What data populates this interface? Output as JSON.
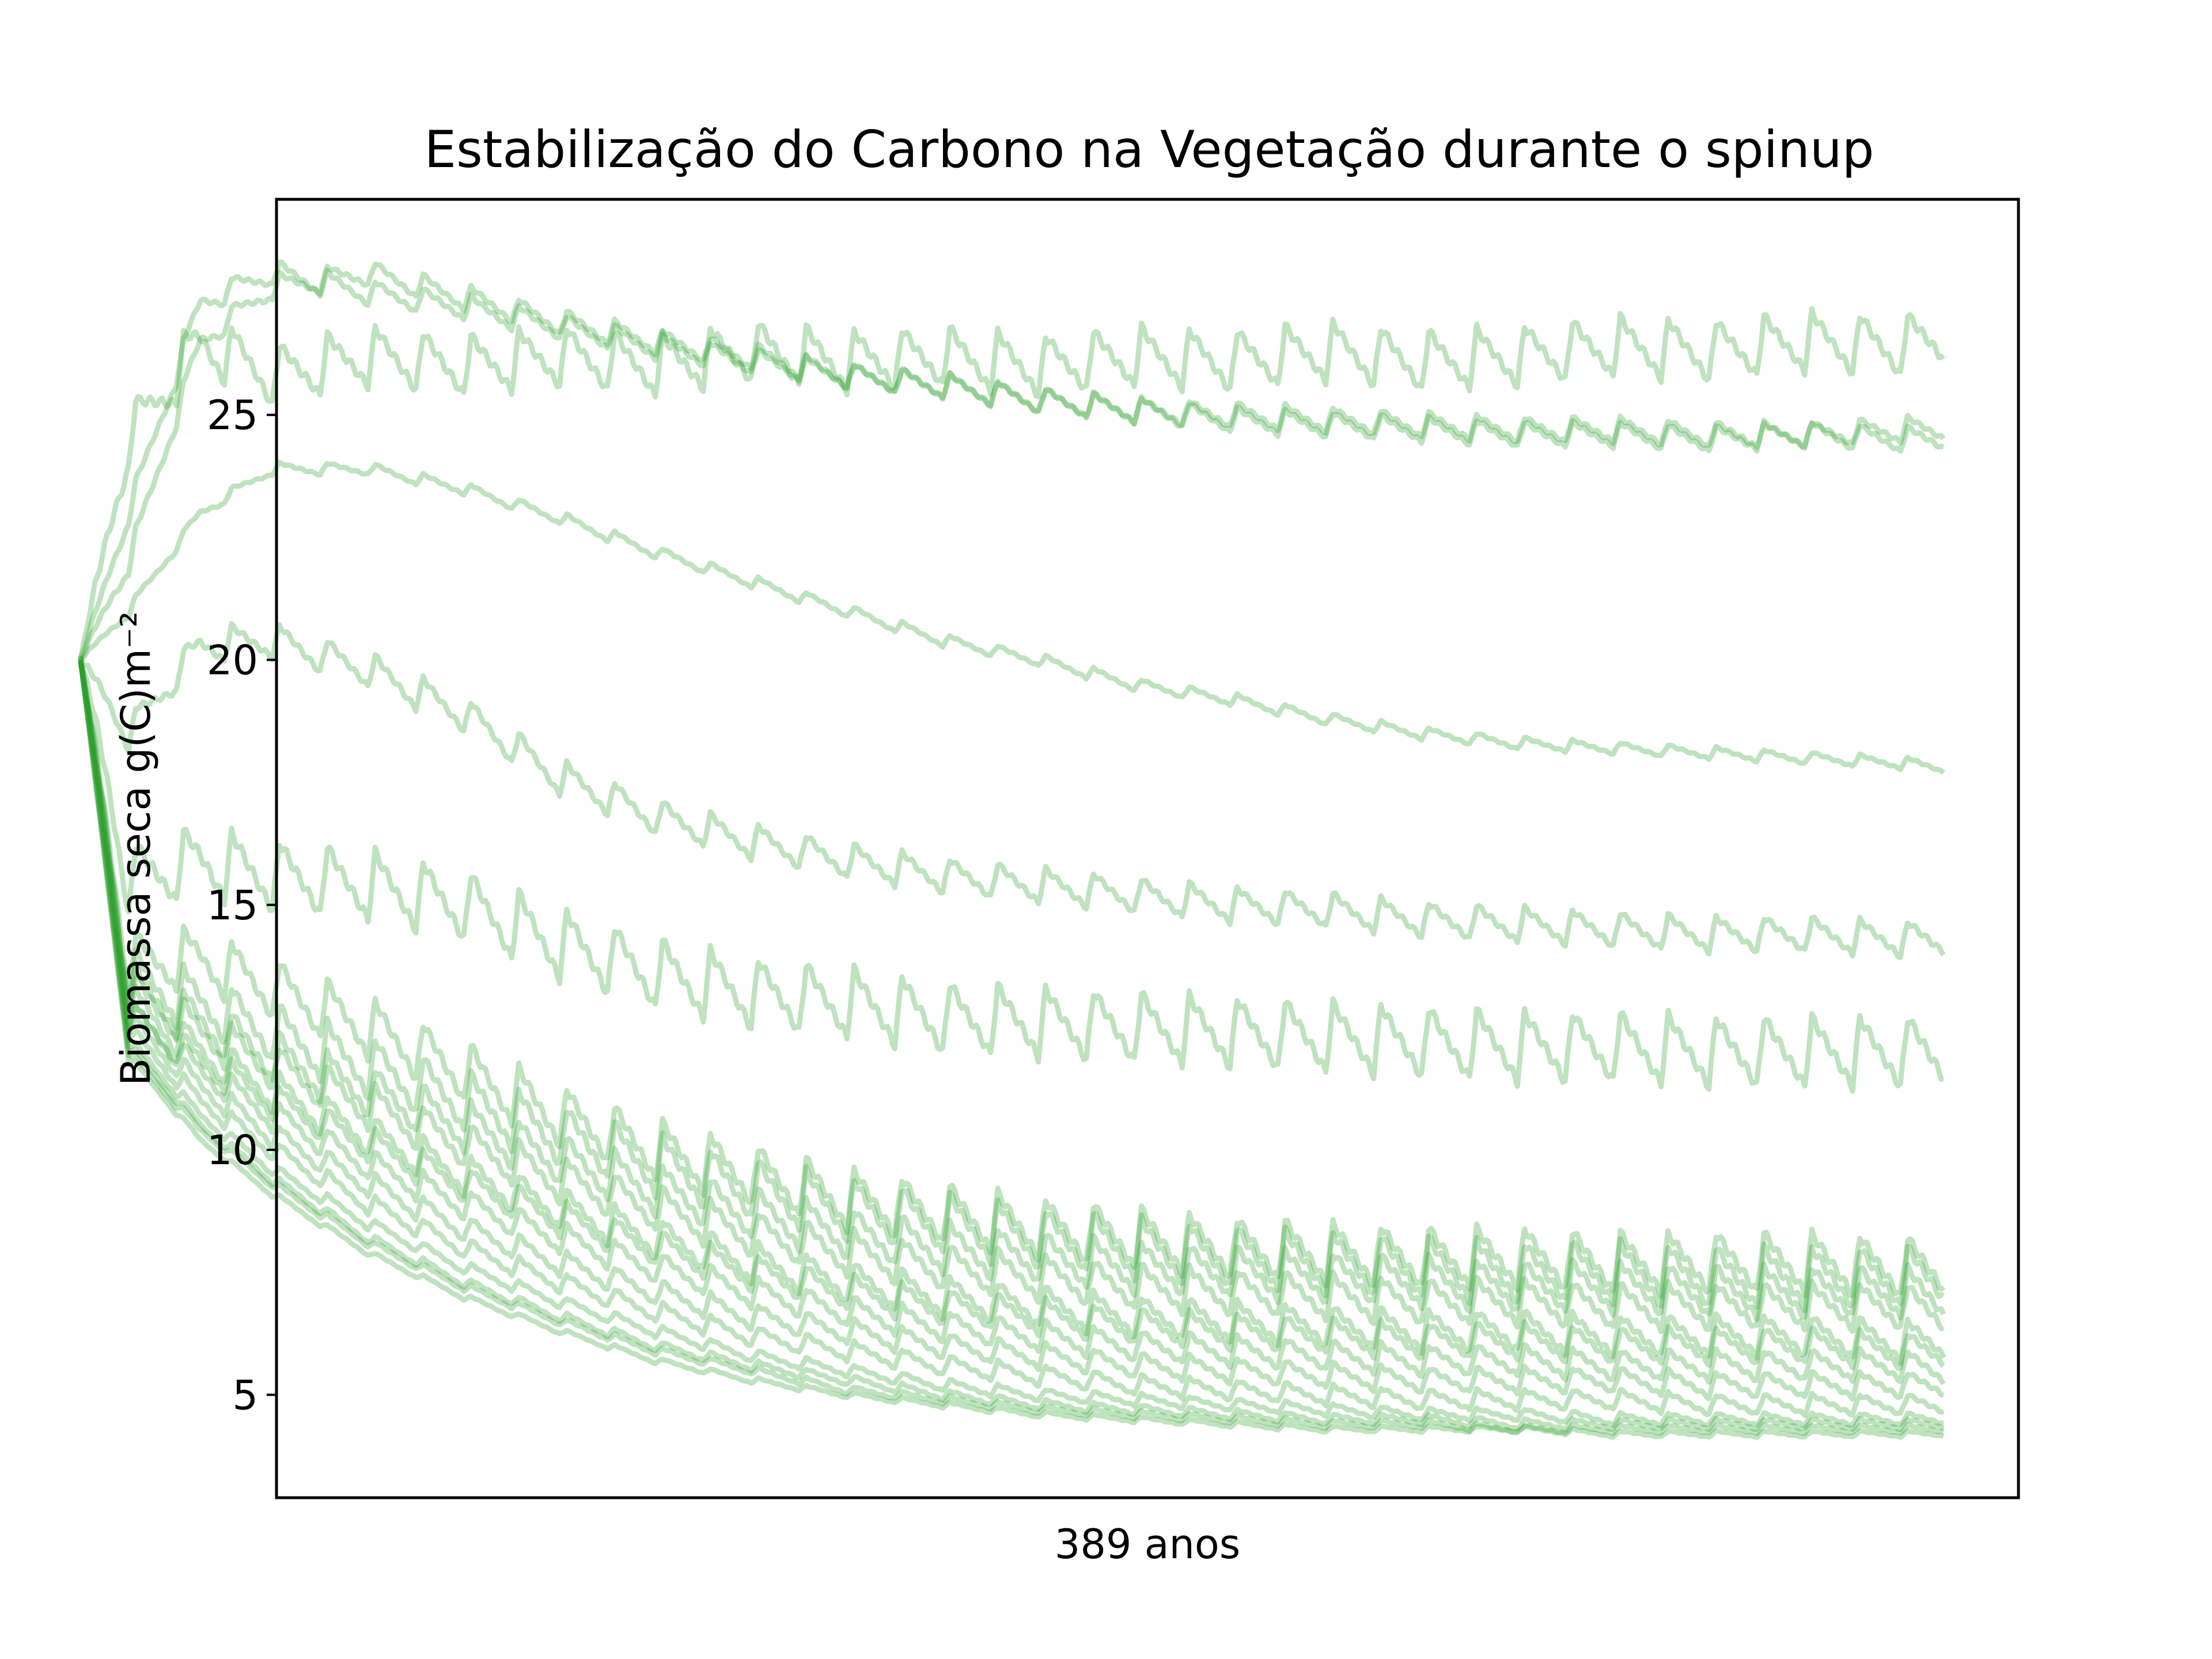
{
  "chart_data": {
    "type": "line",
    "title": "Estabilização do Carbono na Vegetação durante o spinup",
    "xlabel": "389 anos",
    "ylabel": "Biomassa seca  g(C)m⁻²",
    "xlim": [
      0,
      389
    ],
    "ylim": [
      2.9,
      29.4
    ],
    "grid": false,
    "line_color": "#2ca02c",
    "line_alpha": 0.3,
    "yticks": [
      {
        "value": 5,
        "label": "5"
      },
      {
        "value": 10,
        "label": "10"
      },
      {
        "value": 15,
        "label": "15"
      },
      {
        "value": 20,
        "label": "20"
      },
      {
        "value": 25,
        "label": "25"
      }
    ],
    "series": [
      {
        "x": [
          0,
          10,
          25,
          40,
          60,
          80,
          100,
          120,
          140,
          160,
          180,
          200,
          220,
          240,
          260,
          280,
          300,
          320,
          340,
          360,
          380,
          389
        ],
        "y": [
          20,
          24.5,
          26.5,
          25.8,
          26.2,
          26.0,
          26.2,
          26.0,
          26.3,
          26.1,
          26.2,
          26.0,
          26.2,
          26.1,
          26.3,
          26.1,
          26.2,
          26.4,
          26.3,
          26.5,
          26.4,
          26.6
        ],
        "amp": 0.6
      },
      {
        "x": [
          0,
          10,
          25,
          40,
          60,
          80,
          100,
          120,
          140,
          160,
          180,
          200,
          220,
          240,
          260,
          280,
          300,
          320,
          340,
          360,
          380,
          389
        ],
        "y": [
          20,
          23.0,
          27.3,
          27.9,
          27.5,
          27.2,
          26.8,
          26.4,
          26.1,
          25.8,
          25.6,
          25.3,
          25.1,
          25.0,
          24.9,
          24.8,
          24.7,
          24.7,
          24.6,
          24.6,
          24.5,
          24.5
        ],
        "amp": 0.25
      },
      {
        "x": [
          0,
          10,
          25,
          40,
          60,
          80,
          100,
          120,
          140,
          160,
          180,
          200,
          220,
          240,
          260,
          280,
          300,
          320,
          340,
          360,
          380,
          389
        ],
        "y": [
          20,
          22.0,
          26.5,
          27.6,
          27.9,
          27.4,
          26.9,
          26.5,
          26.2,
          25.8,
          25.6,
          25.3,
          25.1,
          24.9,
          24.8,
          24.7,
          24.6,
          24.6,
          24.5,
          24.6,
          24.7,
          24.7
        ],
        "amp": 0.25
      },
      {
        "x": [
          0,
          10,
          25,
          40,
          60,
          80,
          100,
          120,
          140,
          160,
          180,
          200,
          220,
          240,
          260,
          280,
          300,
          320,
          340,
          360,
          380,
          389
        ],
        "y": [
          20,
          21.0,
          23.0,
          23.9,
          23.9,
          23.5,
          22.9,
          22.2,
          21.6,
          21.0,
          20.4,
          20.0,
          19.5,
          19.2,
          18.8,
          18.5,
          18.3,
          18.2,
          18.1,
          18.0,
          17.9,
          17.8
        ],
        "amp": 0.12
      },
      {
        "x": [
          0,
          10,
          25,
          40,
          60,
          80,
          100,
          120,
          140,
          160,
          180,
          200,
          220,
          240,
          260,
          280,
          300,
          320,
          340,
          360,
          380,
          389
        ],
        "y": [
          20,
          18.5,
          20.3,
          20.4,
          19.8,
          18.9,
          17.6,
          16.8,
          16.3,
          15.9,
          15.6,
          15.4,
          15.2,
          15.0,
          14.9,
          14.7,
          14.6,
          14.5,
          14.4,
          14.4,
          14.3,
          14.3
        ],
        "amp": 0.35
      },
      {
        "x": [
          0,
          10,
          25,
          40,
          60,
          80,
          100,
          120,
          140,
          160,
          180,
          200,
          220,
          240,
          260,
          280,
          300,
          320,
          340,
          360,
          380,
          389
        ],
        "y": [
          20,
          15.5,
          15.9,
          15.6,
          15.4,
          15.0,
          14.2,
          13.6,
          13.2,
          13.0,
          12.7,
          12.6,
          12.5,
          12.4,
          12.3,
          12.2,
          12.1,
          12.1,
          12.0,
          12.0,
          12.0,
          12.0
        ],
        "amp": 0.7
      },
      {
        "x": [
          0,
          10,
          25,
          40,
          60,
          80,
          100,
          120,
          140,
          160,
          180,
          200,
          220,
          240,
          260,
          280,
          300,
          320,
          340,
          360,
          380,
          389
        ],
        "y": [
          20,
          13.8,
          13.9,
          13.3,
          12.5,
          11.6,
          10.7,
          10.0,
          9.5,
          9.0,
          8.7,
          8.4,
          8.2,
          8.0,
          7.9,
          7.8,
          7.8,
          7.7,
          7.7,
          7.7,
          7.6,
          7.6
        ],
        "amp": 0.6
      },
      {
        "x": [
          0,
          10,
          25,
          40,
          60,
          80,
          100,
          120,
          140,
          160,
          180,
          200,
          220,
          240,
          260,
          280,
          300,
          320,
          340,
          360,
          380,
          389
        ],
        "y": [
          20,
          13.5,
          13.0,
          12.4,
          11.7,
          11.0,
          10.3,
          9.7,
          9.2,
          8.8,
          8.5,
          8.2,
          8.0,
          7.8,
          7.7,
          7.6,
          7.5,
          7.5,
          7.4,
          7.4,
          7.4,
          7.4
        ],
        "amp": 0.6
      },
      {
        "x": [
          0,
          10,
          25,
          40,
          60,
          80,
          100,
          120,
          140,
          160,
          180,
          200,
          220,
          240,
          260,
          280,
          300,
          320,
          340,
          360,
          380,
          389
        ],
        "y": [
          20,
          13.3,
          12.6,
          11.9,
          11.2,
          10.5,
          9.8,
          9.2,
          8.7,
          8.3,
          8.0,
          7.8,
          7.6,
          7.5,
          7.4,
          7.3,
          7.2,
          7.2,
          7.1,
          7.1,
          7.1,
          7.0
        ],
        "amp": 0.5
      },
      {
        "x": [
          0,
          10,
          25,
          40,
          60,
          80,
          100,
          120,
          140,
          160,
          180,
          200,
          220,
          240,
          260,
          280,
          300,
          320,
          340,
          360,
          380,
          389
        ],
        "y": [
          20,
          13.0,
          12.0,
          11.2,
          10.3,
          9.5,
          8.8,
          8.2,
          7.7,
          7.3,
          7.0,
          6.8,
          6.6,
          6.5,
          6.4,
          6.3,
          6.3,
          6.2,
          6.2,
          6.2,
          6.1,
          6.1
        ],
        "amp": 0.4
      },
      {
        "x": [
          0,
          10,
          25,
          40,
          60,
          80,
          100,
          120,
          140,
          160,
          180,
          200,
          220,
          240,
          260,
          280,
          300,
          320,
          340,
          360,
          380,
          389
        ],
        "y": [
          20,
          12.8,
          11.6,
          10.7,
          9.7,
          8.9,
          8.2,
          7.6,
          7.1,
          6.7,
          6.4,
          6.2,
          6.0,
          5.9,
          5.8,
          5.7,
          5.7,
          5.6,
          5.6,
          5.6,
          5.6,
          5.5
        ],
        "amp": 0.3
      },
      {
        "x": [
          0,
          10,
          25,
          40,
          60,
          80,
          100,
          120,
          140,
          160,
          180,
          200,
          220,
          240,
          260,
          280,
          300,
          320,
          340,
          360,
          380,
          389
        ],
        "y": [
          20,
          12.6,
          11.3,
          10.3,
          9.3,
          8.4,
          7.7,
          7.1,
          6.6,
          6.3,
          6.0,
          5.8,
          5.6,
          5.5,
          5.4,
          5.3,
          5.3,
          5.3,
          5.2,
          5.2,
          5.2,
          5.2
        ],
        "amp": 0.25
      },
      {
        "x": [
          0,
          10,
          25,
          40,
          60,
          80,
          100,
          120,
          140,
          160,
          180,
          200,
          220,
          240,
          260,
          280,
          300,
          320,
          340,
          360,
          380,
          389
        ],
        "y": [
          20,
          12.4,
          11.0,
          10.0,
          8.9,
          8.0,
          7.3,
          6.7,
          6.2,
          5.9,
          5.6,
          5.4,
          5.2,
          5.1,
          5.0,
          4.9,
          4.9,
          4.9,
          4.8,
          4.8,
          4.8,
          4.8
        ],
        "amp": 0.2
      },
      {
        "x": [
          0,
          10,
          25,
          40,
          60,
          80,
          100,
          120,
          140,
          160,
          180,
          200,
          220,
          240,
          260,
          280,
          300,
          320,
          340,
          360,
          380,
          389
        ],
        "y": [
          20,
          12.2,
          10.7,
          9.6,
          8.5,
          7.6,
          6.9,
          6.3,
          5.8,
          5.5,
          5.2,
          5.0,
          4.9,
          4.8,
          4.7,
          4.6,
          4.6,
          4.5,
          4.5,
          4.5,
          4.5,
          4.5
        ],
        "amp": 0.12
      },
      {
        "x": [
          0,
          10,
          25,
          40,
          60,
          80,
          100,
          120,
          140,
          160,
          180,
          200,
          220,
          240,
          260,
          280,
          300,
          320,
          340,
          360,
          380,
          389
        ],
        "y": [
          20,
          12.0,
          10.4,
          9.3,
          8.1,
          7.2,
          6.5,
          5.9,
          5.5,
          5.1,
          4.9,
          4.7,
          4.6,
          4.5,
          4.4,
          4.4,
          4.3,
          4.3,
          4.3,
          4.3,
          4.3,
          4.3
        ],
        "amp": 0.08
      },
      {
        "x": [
          0,
          10,
          25,
          40,
          60,
          80,
          100,
          120,
          140,
          160,
          180,
          200,
          220,
          240,
          260,
          280,
          300,
          320,
          340,
          360,
          380,
          389
        ],
        "y": [
          20,
          11.9,
          10.2,
          9.1,
          7.9,
          7.0,
          6.3,
          5.7,
          5.3,
          5.0,
          4.8,
          4.6,
          4.5,
          4.4,
          4.3,
          4.3,
          4.3,
          4.2,
          4.2,
          4.2,
          4.2,
          4.2
        ],
        "amp": 0.06
      },
      {
        "x": [
          0,
          10,
          25,
          40,
          60,
          80,
          100,
          120,
          140,
          160,
          180,
          200,
          220,
          240,
          260,
          280,
          300,
          320,
          340,
          360,
          380,
          389
        ],
        "y": [
          20,
          12.1,
          10.5,
          9.4,
          8.2,
          7.3,
          6.6,
          6.0,
          5.6,
          5.3,
          5.0,
          4.8,
          4.7,
          4.6,
          4.5,
          4.5,
          4.4,
          4.4,
          4.4,
          4.4,
          4.4,
          4.4
        ],
        "amp": 0.1
      },
      {
        "x": [
          0,
          10,
          25,
          40,
          60,
          80,
          100,
          120,
          140,
          160,
          180,
          200,
          220,
          240,
          260,
          280,
          300,
          320,
          340,
          360,
          380,
          389
        ],
        "y": [
          20,
          12.7,
          11.8,
          11.0,
          10.1,
          9.3,
          8.6,
          8.0,
          7.5,
          7.1,
          6.8,
          6.6,
          6.4,
          6.3,
          6.2,
          6.1,
          6.1,
          6.0,
          6.0,
          6.0,
          5.9,
          5.9
        ],
        "amp": 0.35
      },
      {
        "x": [
          0,
          10,
          25,
          40,
          60,
          80,
          100,
          120,
          140,
          160,
          180,
          200,
          220,
          240,
          260,
          280,
          300,
          320,
          340,
          360,
          380,
          389
        ],
        "y": [
          20,
          13.2,
          12.4,
          11.7,
          10.9,
          10.1,
          9.4,
          8.8,
          8.3,
          7.9,
          7.6,
          7.4,
          7.2,
          7.1,
          7.0,
          6.9,
          6.9,
          6.8,
          6.8,
          6.8,
          6.8,
          6.7
        ],
        "amp": 0.45
      }
    ]
  }
}
